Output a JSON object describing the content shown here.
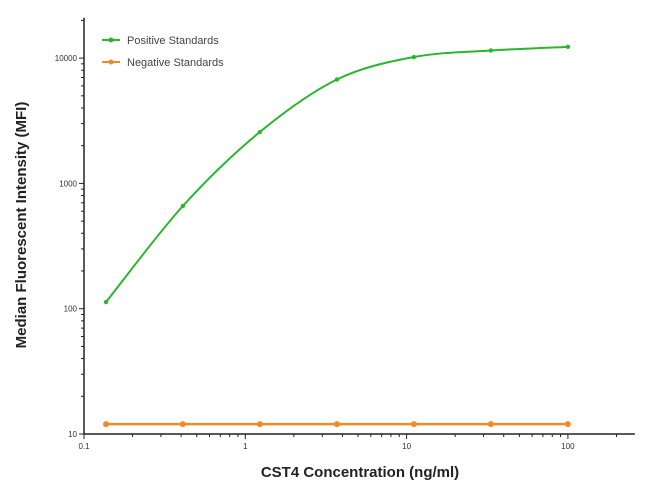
{
  "chart_data": {
    "type": "line",
    "title": "",
    "xlabel": "CST4 Concentration (ng/ml)",
    "ylabel": "Median  Fluorescent Intensity  (MFI)",
    "xscale": "log",
    "yscale": "log",
    "xlim": [
      0.1,
      260
    ],
    "ylim": [
      10,
      21000
    ],
    "xticks": [
      0.1,
      1,
      10,
      100
    ],
    "xtick_labels": [
      "0.1",
      "1",
      "10",
      "100"
    ],
    "yticks": [
      10,
      100,
      1000,
      10000
    ],
    "ytick_labels": [
      "10",
      "100",
      "1000",
      "10000"
    ],
    "grid": false,
    "legend_position": "top-left",
    "series": [
      {
        "name": "Positive Standards",
        "color": "#2db52d",
        "x": [
          0.137,
          0.41,
          1.23,
          3.7,
          11.1,
          33.3,
          100
        ],
        "y": [
          113,
          660,
          2570,
          6750,
          10200,
          11500,
          12300
        ]
      },
      {
        "name": "Negative Standards",
        "color": "#f08a24",
        "x": [
          0.137,
          0.41,
          1.23,
          3.7,
          11.1,
          33.3,
          100
        ],
        "y": [
          12,
          12,
          12,
          12,
          12,
          12,
          12
        ]
      }
    ]
  }
}
